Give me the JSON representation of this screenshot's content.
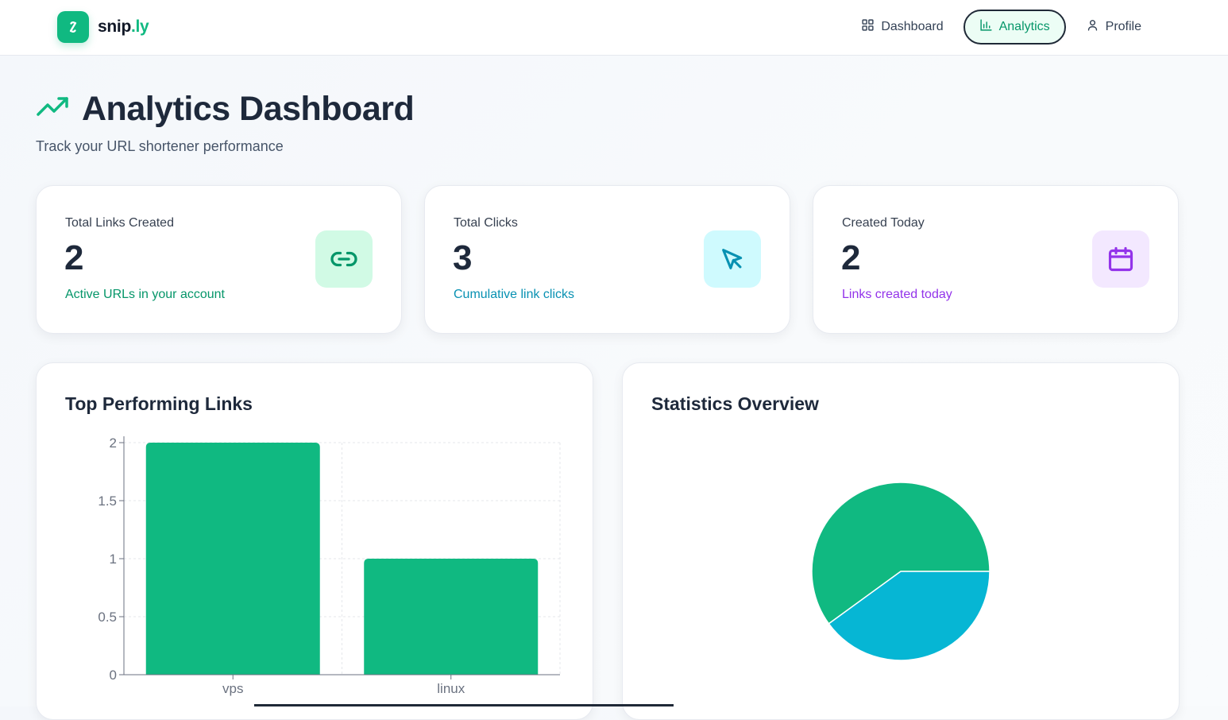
{
  "app": {
    "logo_prefix": "snip",
    "logo_suffix": ".ly"
  },
  "nav": {
    "items": [
      {
        "label": "Dashboard",
        "icon": "grid-icon"
      },
      {
        "label": "Analytics",
        "icon": "bar-chart-icon",
        "active": true
      },
      {
        "label": "Profile",
        "icon": "user-icon"
      }
    ]
  },
  "header": {
    "title": "Analytics Dashboard",
    "subtitle": "Track your URL shortener performance",
    "icon": "trending-up-icon"
  },
  "stats": [
    {
      "label": "Total Links Created",
      "value": "2",
      "caption": "Active URLs in your account",
      "icon": "link-icon",
      "accent": "#059669",
      "icon_bg": "#d1fae5"
    },
    {
      "label": "Total Clicks",
      "value": "3",
      "caption": "Cumulative link clicks",
      "icon": "cursor-icon",
      "accent": "#0891b2",
      "icon_bg": "#cffafe"
    },
    {
      "label": "Created Today",
      "value": "2",
      "caption": "Links created today",
      "icon": "calendar-icon",
      "accent": "#9333ea",
      "icon_bg": "#f3e8ff"
    }
  ],
  "charts": {
    "bar_title": "Top Performing Links",
    "pie_title": "Statistics Overview"
  },
  "colors": {
    "green": "#10b981",
    "cyan": "#06b6d4"
  },
  "chart_data": [
    {
      "type": "bar",
      "title": "Top Performing Links",
      "categories": [
        "vps",
        "linux"
      ],
      "values": [
        2,
        1
      ],
      "y_ticks": [
        "0",
        "0.5",
        "1",
        "1.5",
        "2"
      ],
      "ylim": [
        0,
        2
      ],
      "grid": true
    },
    {
      "type": "pie",
      "title": "Statistics Overview",
      "values": [
        3,
        2
      ],
      "colors": [
        "#10b981",
        "#06b6d4"
      ]
    }
  ]
}
